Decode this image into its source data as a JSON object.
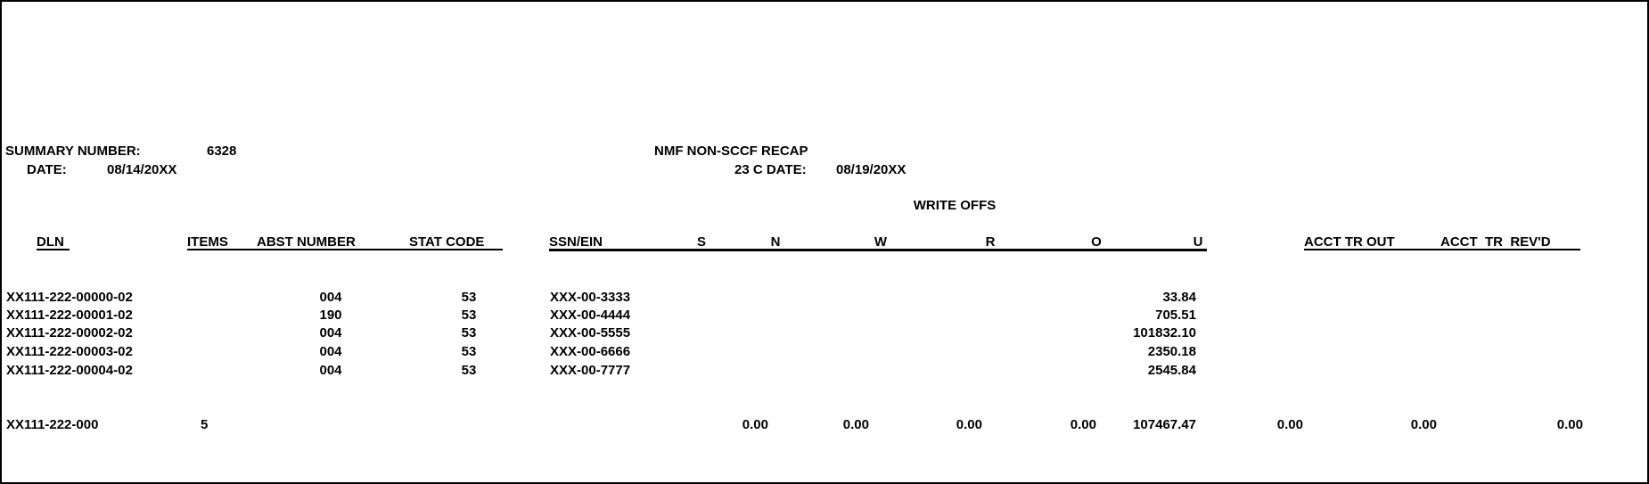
{
  "header": {
    "summary_label": "SUMMARY NUMBER:",
    "summary_number": "6328",
    "date_label": "DATE:",
    "date_value": "08/14/20XX",
    "report_title": "NMF NON-SCCF RECAP",
    "c_date_label": "23 C DATE:",
    "c_date_value": "08/19/20XX",
    "section_title": "WRITE OFFS"
  },
  "columns": {
    "dln": "DLN",
    "items": "ITEMS",
    "abst_number": "ABST NUMBER",
    "stat_code": "STAT CODE",
    "ssn_ein": "SSN/EIN",
    "s": "S",
    "n": "N",
    "w": "W",
    "r": "R",
    "o": "O",
    "u": "U",
    "acct_tr_out": "ACCT TR OUT",
    "acct_tr_revd": "ACCT  TR  REV'D"
  },
  "rows": [
    {
      "dln": "XX111-222-00000-02",
      "abst": "004",
      "stat": "53",
      "ssn": "XXX-00-3333",
      "u": "33.84"
    },
    {
      "dln": "XX111-222-00001-02",
      "abst": "190",
      "stat": "53",
      "ssn": "XXX-00-4444",
      "u": "705.51"
    },
    {
      "dln": "XX111-222-00002-02",
      "abst": "004",
      "stat": "53",
      "ssn": "XXX-00-5555",
      "u": "101832.10"
    },
    {
      "dln": "XX111-222-00003-02",
      "abst": "004",
      "stat": "53",
      "ssn": "XXX-00-6666",
      "u": "2350.18"
    },
    {
      "dln": "XX111-222-00004-02",
      "abst": "004",
      "stat": "53",
      "ssn": "XXX-00-7777",
      "u": "2545.84"
    }
  ],
  "totals": {
    "dln": "XX111-222-000",
    "items": "5",
    "n": "0.00",
    "w": "0.00",
    "r": "0.00",
    "o": "0.00",
    "u": "107467.47",
    "acct_tr_out": "0.00",
    "acct_tr_revd_1": "0.00",
    "acct_tr_revd_2": "0.00"
  }
}
